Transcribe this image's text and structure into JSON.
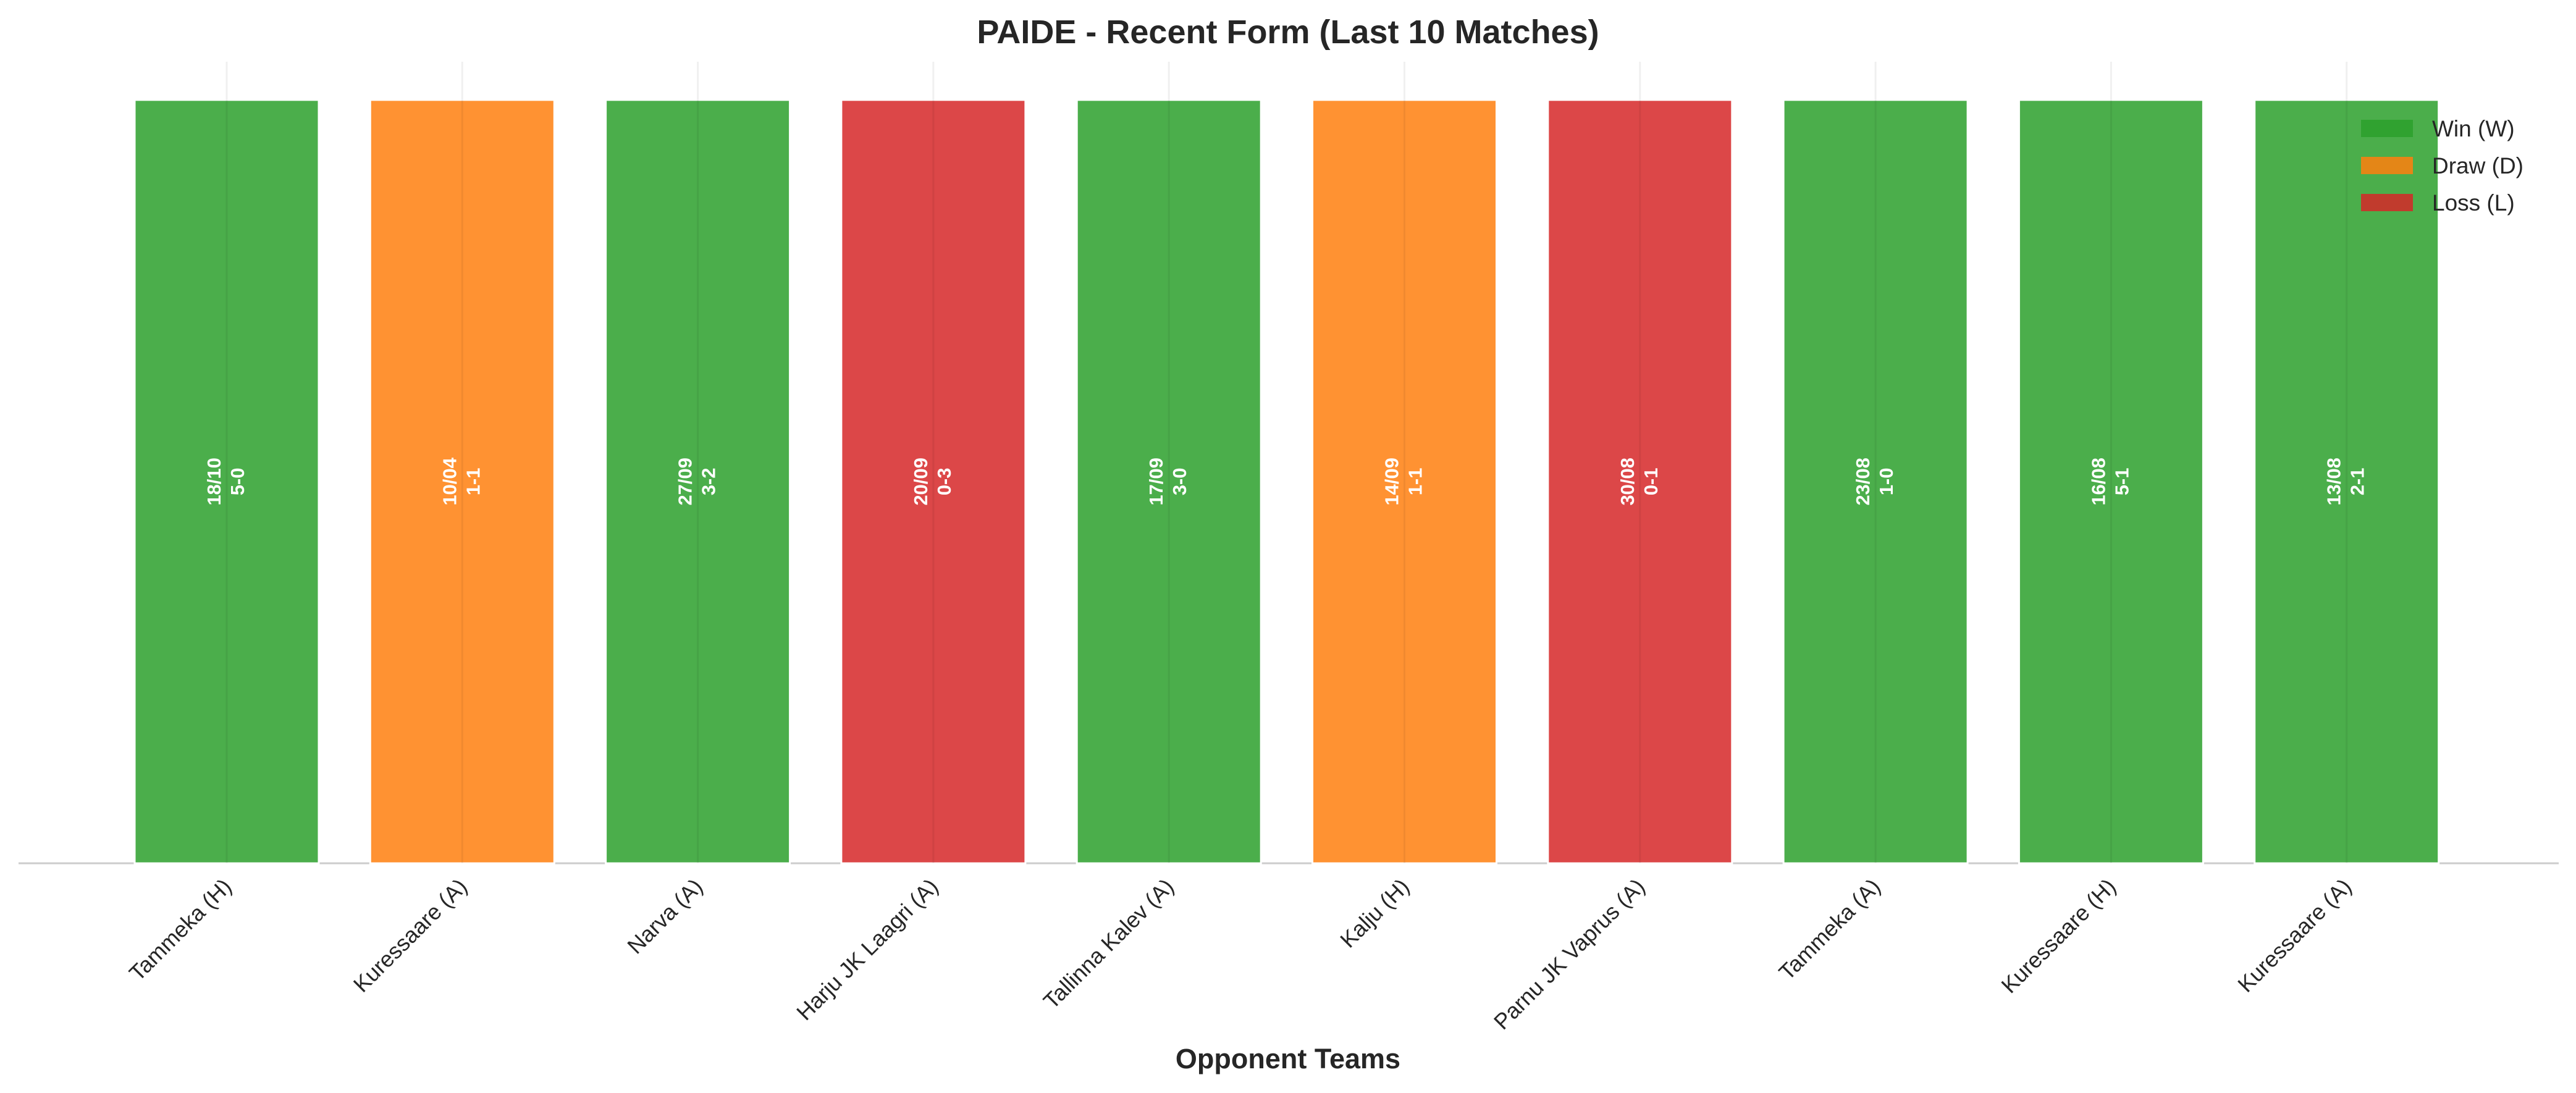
{
  "chart_data": {
    "type": "bar",
    "title": "PAIDE - Recent Form (Last 10 Matches)",
    "x_label": "Opponent Teams",
    "categories": [
      "Tammeka (H)",
      "Kuressaare (A)",
      "Narva (A)",
      "Harju JK Laagri (A)",
      "Tallinna Kalev (A)",
      "Kalju (H)",
      "Parnu JK Vaprus (A)",
      "Tammeka (A)",
      "Kuressaare (H)",
      "Kuressaare (A)"
    ],
    "values": [
      1,
      1,
      1,
      1,
      1,
      1,
      1,
      1,
      1,
      1
    ],
    "dates": [
      "18/10",
      "10/04",
      "27/09",
      "20/09",
      "17/09",
      "14/09",
      "30/08",
      "23/08",
      "16/08",
      "13/08"
    ],
    "scores": [
      "5-0",
      "1-1",
      "3-2",
      "0-3",
      "3-0",
      "1-1",
      "0-1",
      "1-0",
      "5-1",
      "2-1"
    ],
    "colors": [
      "#2ca02c",
      "#ff7f0e",
      "#2ca02c",
      "#d62728",
      "#2ca02c",
      "#ff7f0e",
      "#d62728",
      "#2ca02c",
      "#2ca02c",
      "#2ca02c"
    ],
    "ylim": [
      0,
      1.05
    ],
    "legend": [
      {
        "name": "Win (W)",
        "color": "#2ca02c"
      },
      {
        "name": "Draw (D)",
        "color": "#ff7f0e"
      },
      {
        "name": "Loss (L)",
        "color": "#d62728"
      }
    ],
    "legend_position": "upper right"
  }
}
